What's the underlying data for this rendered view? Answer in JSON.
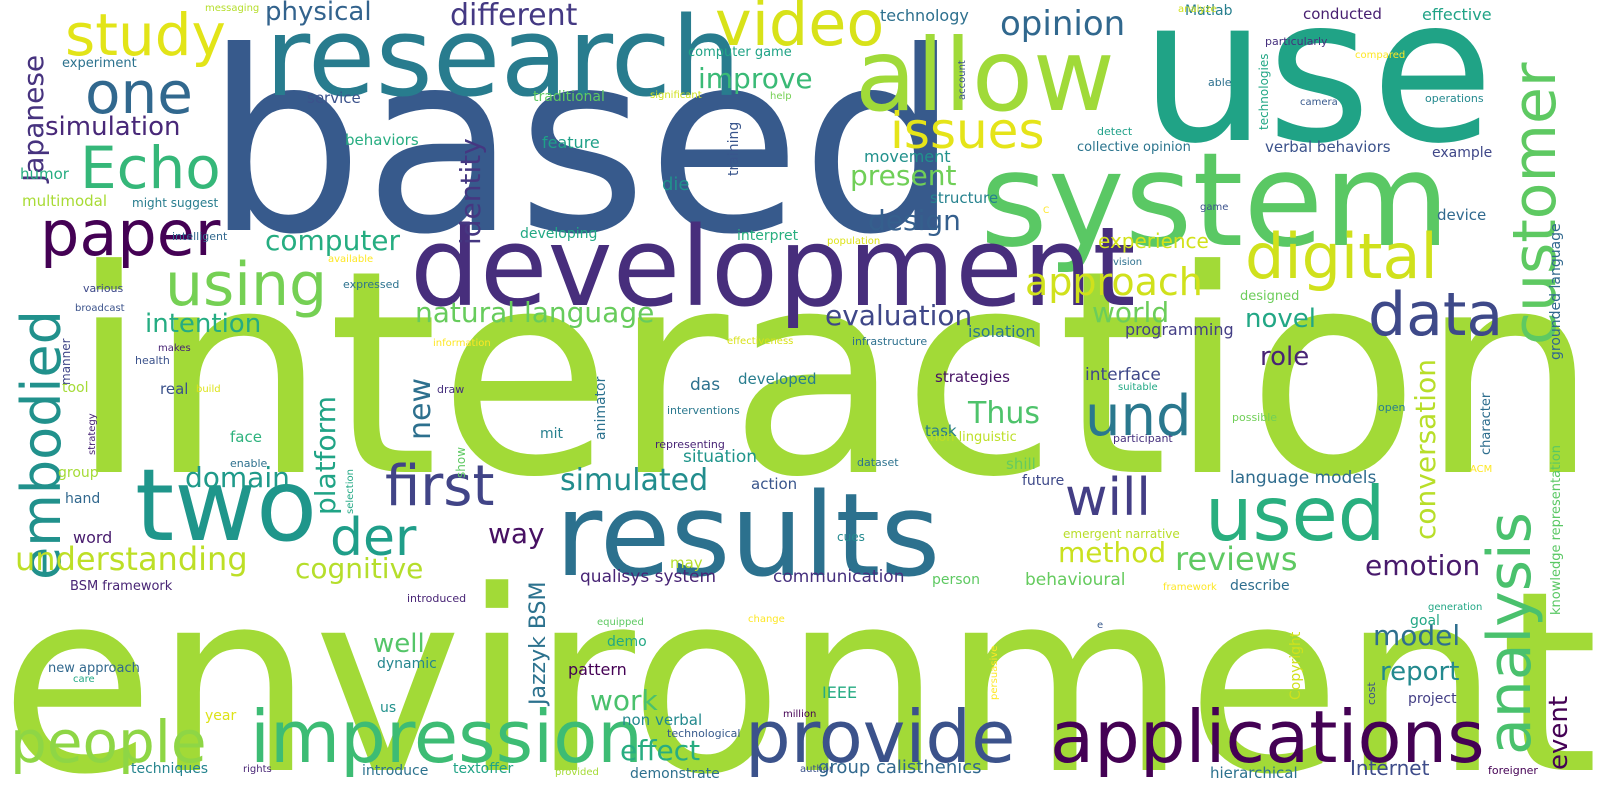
{
  "title": "",
  "words": [
    {
      "t": "interaction",
      "c": "#a2da37"
    },
    {
      "t": "environment",
      "c": "#a2da37"
    },
    {
      "t": "based",
      "c": "#375a8c"
    },
    {
      "t": "use",
      "c": "#20a386"
    },
    {
      "t": "research",
      "c": "#287c8e"
    },
    {
      "t": "system",
      "c": "#5ac864"
    },
    {
      "t": "development",
      "c": "#472e7c"
    },
    {
      "t": "results",
      "c": "#2c718e"
    },
    {
      "t": "applications",
      "c": "#440154"
    },
    {
      "t": "allow",
      "c": "#a0da39"
    },
    {
      "t": "video",
      "c": "#d8e219"
    },
    {
      "t": "two",
      "c": "#1f968b"
    },
    {
      "t": "impression",
      "c": "#3dbc74"
    },
    {
      "t": "provide",
      "c": "#3b528b"
    },
    {
      "t": "people",
      "c": "#8ed645"
    },
    {
      "t": "paper",
      "c": "#440154"
    },
    {
      "t": "study",
      "c": "#e2e418"
    },
    {
      "t": "one",
      "c": "#31688e"
    },
    {
      "t": "Echo",
      "c": "#35b779"
    },
    {
      "t": "using",
      "c": "#75d054"
    },
    {
      "t": "embodied",
      "c": "#21918c"
    },
    {
      "t": "digital",
      "c": "#d0e11c"
    },
    {
      "t": "customer",
      "c": "#5ec962"
    },
    {
      "t": "data",
      "c": "#3e4989"
    },
    {
      "t": "issues",
      "c": "#e5e419"
    },
    {
      "t": "analysis",
      "c": "#4ac16d"
    },
    {
      "t": "used",
      "c": "#29af7f"
    },
    {
      "t": "und",
      "c": "#2a788e"
    },
    {
      "t": "first",
      "c": "#414487"
    },
    {
      "t": "will",
      "c": "#433e85"
    },
    {
      "t": "der",
      "c": "#1f9e89"
    },
    {
      "t": "opinion",
      "c": "#31688e"
    },
    {
      "t": "approach",
      "c": "#d0e11c"
    },
    {
      "t": "different",
      "c": "#443983"
    },
    {
      "t": "physical",
      "c": "#33638d"
    },
    {
      "t": "simulation",
      "c": "#482878"
    },
    {
      "t": "Japanese",
      "c": "#46327e"
    },
    {
      "t": "improve",
      "c": "#3aba76"
    },
    {
      "t": "present",
      "c": "#70cf57"
    },
    {
      "t": "design",
      "c": "#355f8d"
    },
    {
      "t": "identity",
      "c": "#453781"
    },
    {
      "t": "computer",
      "c": "#26ad81"
    },
    {
      "t": "natural language",
      "c": "#67cc5c"
    },
    {
      "t": "evaluation",
      "c": "#3f4788"
    },
    {
      "t": "world",
      "c": "#6ccd5a"
    },
    {
      "t": "novel",
      "c": "#22a785"
    },
    {
      "t": "intention",
      "c": "#25ac82"
    },
    {
      "t": "platform",
      "c": "#20a486"
    },
    {
      "t": "new",
      "c": "#2d708e"
    },
    {
      "t": "simulated",
      "c": "#228d8d"
    },
    {
      "t": "domain",
      "c": "#1f9a8a"
    },
    {
      "t": "understanding",
      "c": "#bddf26"
    },
    {
      "t": "cognitive",
      "c": "#b5de2b"
    },
    {
      "t": "method",
      "c": "#cae11f"
    },
    {
      "t": "reviews",
      "c": "#5ec962"
    },
    {
      "t": "conversation",
      "c": "#b8de29"
    },
    {
      "t": "role",
      "c": "#482475"
    },
    {
      "t": "Thus",
      "c": "#4ec36b"
    },
    {
      "t": "way",
      "c": "#471063"
    },
    {
      "t": "emotion",
      "c": "#481a6c"
    },
    {
      "t": "model",
      "c": "#2e6f8e"
    },
    {
      "t": "report",
      "c": "#23898e"
    },
    {
      "t": "well",
      "c": "#54c568"
    },
    {
      "t": "work",
      "c": "#4ac16d"
    },
    {
      "t": "effect",
      "c": "#27ad81"
    },
    {
      "t": "event",
      "c": "#440154"
    },
    {
      "t": "Internet",
      "c": "#3e4c8a"
    },
    {
      "t": "Jazzyk BSM",
      "c": "#2c728e"
    },
    {
      "t": "group calisthenics",
      "c": "#31688e"
    },
    {
      "t": "qualisys system",
      "c": "#482475"
    },
    {
      "t": "communication",
      "c": "#46307e"
    },
    {
      "t": "language models",
      "c": "#2f6c8e"
    },
    {
      "t": "behavioural",
      "c": "#65cb5e"
    },
    {
      "t": "experience",
      "c": "#d2e21b"
    },
    {
      "t": "programming",
      "c": "#433e85"
    },
    {
      "t": "isolation",
      "c": "#2a788e"
    },
    {
      "t": "interface",
      "c": "#3f4889"
    },
    {
      "t": "strategies",
      "c": "#471365"
    },
    {
      "t": "developed",
      "c": "#287d8e"
    },
    {
      "t": "das",
      "c": "#2d718e"
    },
    {
      "t": "situation",
      "c": "#1f958b"
    },
    {
      "t": "technology",
      "c": "#2d708e"
    },
    {
      "t": "Matlab",
      "c": "#277f8e"
    },
    {
      "t": "conducted",
      "c": "#482071"
    },
    {
      "t": "effective",
      "c": "#20a386"
    },
    {
      "t": "verbal behaviors",
      "c": "#3b528b"
    },
    {
      "t": "collective opinion",
      "c": "#2b748e"
    },
    {
      "t": "example",
      "c": "#3f4788"
    },
    {
      "t": "device",
      "c": "#30698e"
    },
    {
      "t": "structure",
      "c": "#26828e"
    },
    {
      "t": "movement",
      "c": "#21918c"
    },
    {
      "t": "feature",
      "c": "#1fa088"
    },
    {
      "t": "die",
      "c": "#21918c"
    },
    {
      "t": "behaviors",
      "c": "#27ad81"
    },
    {
      "t": "service",
      "c": "#3b528b"
    },
    {
      "t": "traditional",
      "c": "#5ec962"
    },
    {
      "t": "experiment",
      "c": "#2c728e"
    },
    {
      "t": "humor",
      "c": "#26ad81"
    },
    {
      "t": "multimodal",
      "c": "#a8db34"
    },
    {
      "t": "might suggest",
      "c": "#287d8e"
    },
    {
      "t": "computer game",
      "c": "#20a386"
    },
    {
      "t": "developing",
      "c": "#22a884"
    },
    {
      "t": "interpret",
      "c": "#29af7f"
    },
    {
      "t": "new approach",
      "c": "#31688e"
    },
    {
      "t": "dynamic",
      "c": "#24868e"
    },
    {
      "t": "demo",
      "c": "#22a884"
    },
    {
      "t": "pattern",
      "c": "#440154"
    },
    {
      "t": "non verbal",
      "c": "#23898e"
    },
    {
      "t": "technological",
      "c": "#375a8c"
    },
    {
      "t": "IEEE",
      "c": "#25ab82"
    },
    {
      "t": "textoffer",
      "c": "#20a386"
    },
    {
      "t": "introduce",
      "c": "#2c728e"
    },
    {
      "t": "demonstrate",
      "c": "#2d708e"
    },
    {
      "t": "techniques",
      "c": "#25848e"
    },
    {
      "t": "hierarchical",
      "c": "#2c728e"
    },
    {
      "t": "project",
      "c": "#433e85"
    },
    {
      "t": "tool",
      "c": "#a5db36"
    },
    {
      "t": "real",
      "c": "#3b528b"
    },
    {
      "t": "face",
      "c": "#2db27d"
    },
    {
      "t": "group",
      "c": "#a5db36"
    },
    {
      "t": "hand",
      "c": "#31688e"
    },
    {
      "t": "word",
      "c": "#481c6e"
    },
    {
      "t": "BSM framework",
      "c": "#482475"
    },
    {
      "t": "may",
      "c": "#b5de2b"
    },
    {
      "t": "mit",
      "c": "#27808e"
    },
    {
      "t": "action",
      "c": "#39558c"
    },
    {
      "t": "task",
      "c": "#287d8e"
    },
    {
      "t": "non linguistic",
      "c": "#bddf26"
    },
    {
      "t": "shill",
      "c": "#65cb5e"
    },
    {
      "t": "future",
      "c": "#3e4989"
    },
    {
      "t": "emergent narrative",
      "c": "#b8de29"
    },
    {
      "t": "cues",
      "c": "#23898e"
    },
    {
      "t": "person",
      "c": "#5ec962"
    },
    {
      "t": "goal",
      "c": "#22a785"
    },
    {
      "t": "describe",
      "c": "#2e6e8e"
    },
    {
      "t": "generation",
      "c": "#22a785"
    },
    {
      "t": "grounded language",
      "c": "#31688e"
    },
    {
      "t": "knowledge representation",
      "c": "#5ac864"
    },
    {
      "t": "character",
      "c": "#2e6e8e"
    },
    {
      "t": "ACM",
      "c": "#fde725"
    },
    {
      "t": "open",
      "c": "#277f8e"
    },
    {
      "t": "possible",
      "c": "#70cf57"
    },
    {
      "t": "participant",
      "c": "#46307e"
    },
    {
      "t": "suitable",
      "c": "#22a884"
    },
    {
      "t": "designed",
      "c": "#6ccd5a"
    },
    {
      "t": "vision",
      "c": "#2d708e"
    },
    {
      "t": "population",
      "c": "#dde318"
    },
    {
      "t": "game",
      "c": "#3b528b"
    },
    {
      "t": "C",
      "c": "#fde725"
    },
    {
      "t": "camera",
      "c": "#38598c"
    },
    {
      "t": "operations",
      "c": "#23898e"
    },
    {
      "t": "technologies",
      "c": "#22a785"
    },
    {
      "t": "able",
      "c": "#2d708e"
    },
    {
      "t": "compared",
      "c": "#fde725"
    },
    {
      "t": "particularly",
      "c": "#46307e"
    },
    {
      "t": "detect",
      "c": "#1fa088"
    },
    {
      "t": "account",
      "c": "#3b528b"
    },
    {
      "t": "help",
      "c": "#75d054"
    },
    {
      "t": "significant",
      "c": "#d0e11c"
    },
    {
      "t": "analyze",
      "c": "#d0e11c"
    },
    {
      "t": "messaging",
      "c": "#b5de2b"
    },
    {
      "t": "training",
      "c": "#39558c"
    },
    {
      "t": "intelligent",
      "c": "#31688e"
    },
    {
      "t": "available",
      "c": "#fde725"
    },
    {
      "t": "expressed",
      "c": "#2c728e"
    },
    {
      "t": "various",
      "c": "#3e4989"
    },
    {
      "t": "broadcast",
      "c": "#3b528b"
    },
    {
      "t": "manner",
      "c": "#404688"
    },
    {
      "t": "makes",
      "c": "#482475"
    },
    {
      "t": "health",
      "c": "#3b528b"
    },
    {
      "t": "information",
      "c": "#fde725"
    },
    {
      "t": "effectiveness",
      "c": "#d8e219"
    },
    {
      "t": "infrastructure",
      "c": "#2d708e"
    },
    {
      "t": "build",
      "c": "#dde318"
    },
    {
      "t": "strategy",
      "c": "#482475"
    },
    {
      "t": "enable",
      "c": "#2d708e"
    },
    {
      "t": "draw",
      "c": "#46307e"
    },
    {
      "t": "animator",
      "c": "#2c728e"
    },
    {
      "t": "interventions",
      "c": "#2a788e"
    },
    {
      "t": "representing",
      "c": "#482475"
    },
    {
      "t": "show",
      "c": "#5ec962"
    },
    {
      "t": "selection",
      "c": "#22a884"
    },
    {
      "t": "dataset",
      "c": "#2c728e"
    },
    {
      "t": "introduced",
      "c": "#482475"
    },
    {
      "t": "change",
      "c": "#fde725"
    },
    {
      "t": "framework",
      "c": "#fde725"
    },
    {
      "t": "equipped",
      "c": "#5ec962"
    },
    {
      "t": "e",
      "c": "#38598c"
    },
    {
      "t": "persuasive",
      "c": "#fde725"
    },
    {
      "t": "cost",
      "c": "#3b528b"
    },
    {
      "t": "Copyright",
      "c": "#d0e11c"
    },
    {
      "t": "care",
      "c": "#22a785"
    },
    {
      "t": "year",
      "c": "#dde318"
    },
    {
      "t": "us",
      "c": "#21918c"
    },
    {
      "t": "million",
      "c": "#440154"
    },
    {
      "t": "rights",
      "c": "#482475"
    },
    {
      "t": "author",
      "c": "#3b528b"
    },
    {
      "t": "provided",
      "c": "#a5db36"
    },
    {
      "t": "foreigner",
      "c": "#440154"
    }
  ]
}
